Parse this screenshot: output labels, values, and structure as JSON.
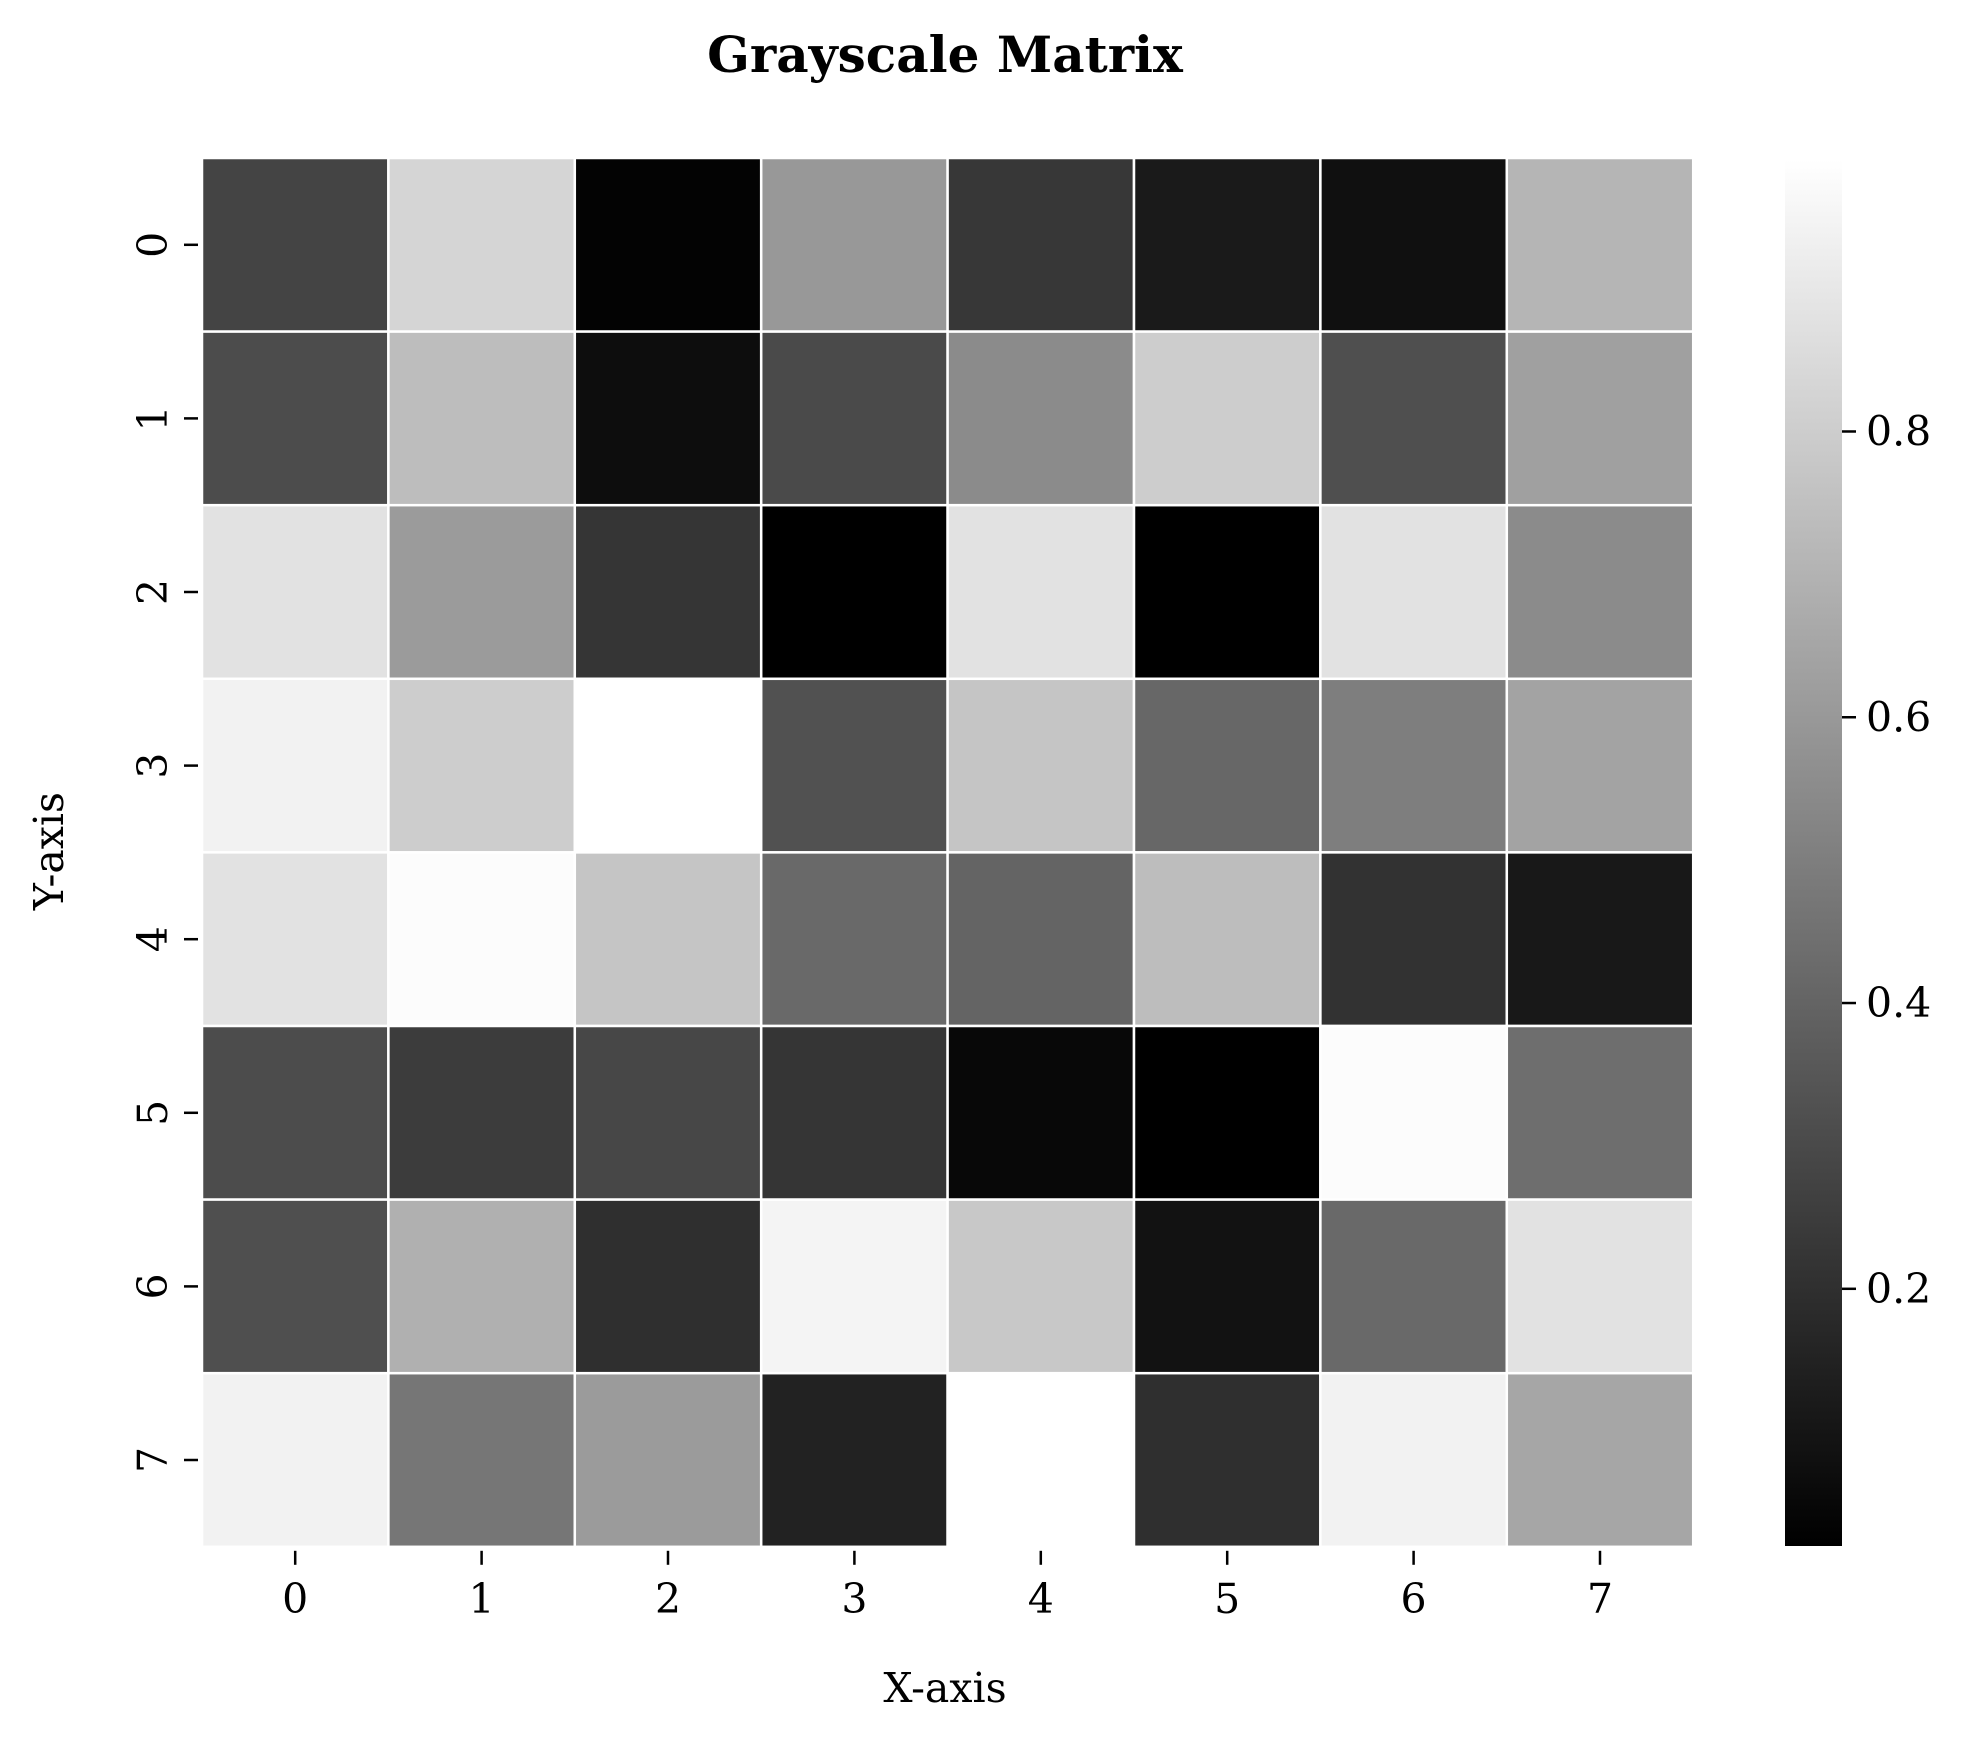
{
  "chart_data": {
    "type": "heatmap",
    "title": "Grayscale Matrix",
    "xlabel": "X-axis",
    "ylabel": "Y-axis",
    "x_categories": [
      "0",
      "1",
      "2",
      "3",
      "4",
      "5",
      "6",
      "7"
    ],
    "y_categories": [
      "0",
      "1",
      "2",
      "3",
      "4",
      "5",
      "6",
      "7"
    ],
    "values": [
      [
        0.28,
        0.83,
        0.03,
        0.6,
        0.23,
        0.12,
        0.08,
        0.71
      ],
      [
        0.31,
        0.74,
        0.07,
        0.3,
        0.55,
        0.8,
        0.32,
        0.63
      ],
      [
        0.88,
        0.61,
        0.22,
        0.02,
        0.88,
        0.02,
        0.88,
        0.55
      ],
      [
        0.94,
        0.8,
        0.99,
        0.33,
        0.77,
        0.41,
        0.5,
        0.64
      ],
      [
        0.88,
        0.98,
        0.77,
        0.42,
        0.4,
        0.74,
        0.21,
        0.11
      ],
      [
        0.31,
        0.25,
        0.29,
        0.22,
        0.05,
        0.02,
        0.98,
        0.44
      ],
      [
        0.32,
        0.69,
        0.2,
        0.95,
        0.78,
        0.09,
        0.42,
        0.88
      ],
      [
        0.94,
        0.47,
        0.61,
        0.15,
        0.99,
        0.2,
        0.94,
        0.65
      ]
    ],
    "colorbar": {
      "min": 0.02,
      "max": 0.99,
      "ticks": [
        "0.2",
        "0.4",
        "0.6",
        "0.8"
      ],
      "tick_values": [
        0.2,
        0.4,
        0.6,
        0.8
      ],
      "colormap": "gray",
      "low_color": "#000000",
      "high_color": "#ffffff"
    },
    "grid_line_color": "#ffffff",
    "background": "#ffffff"
  }
}
